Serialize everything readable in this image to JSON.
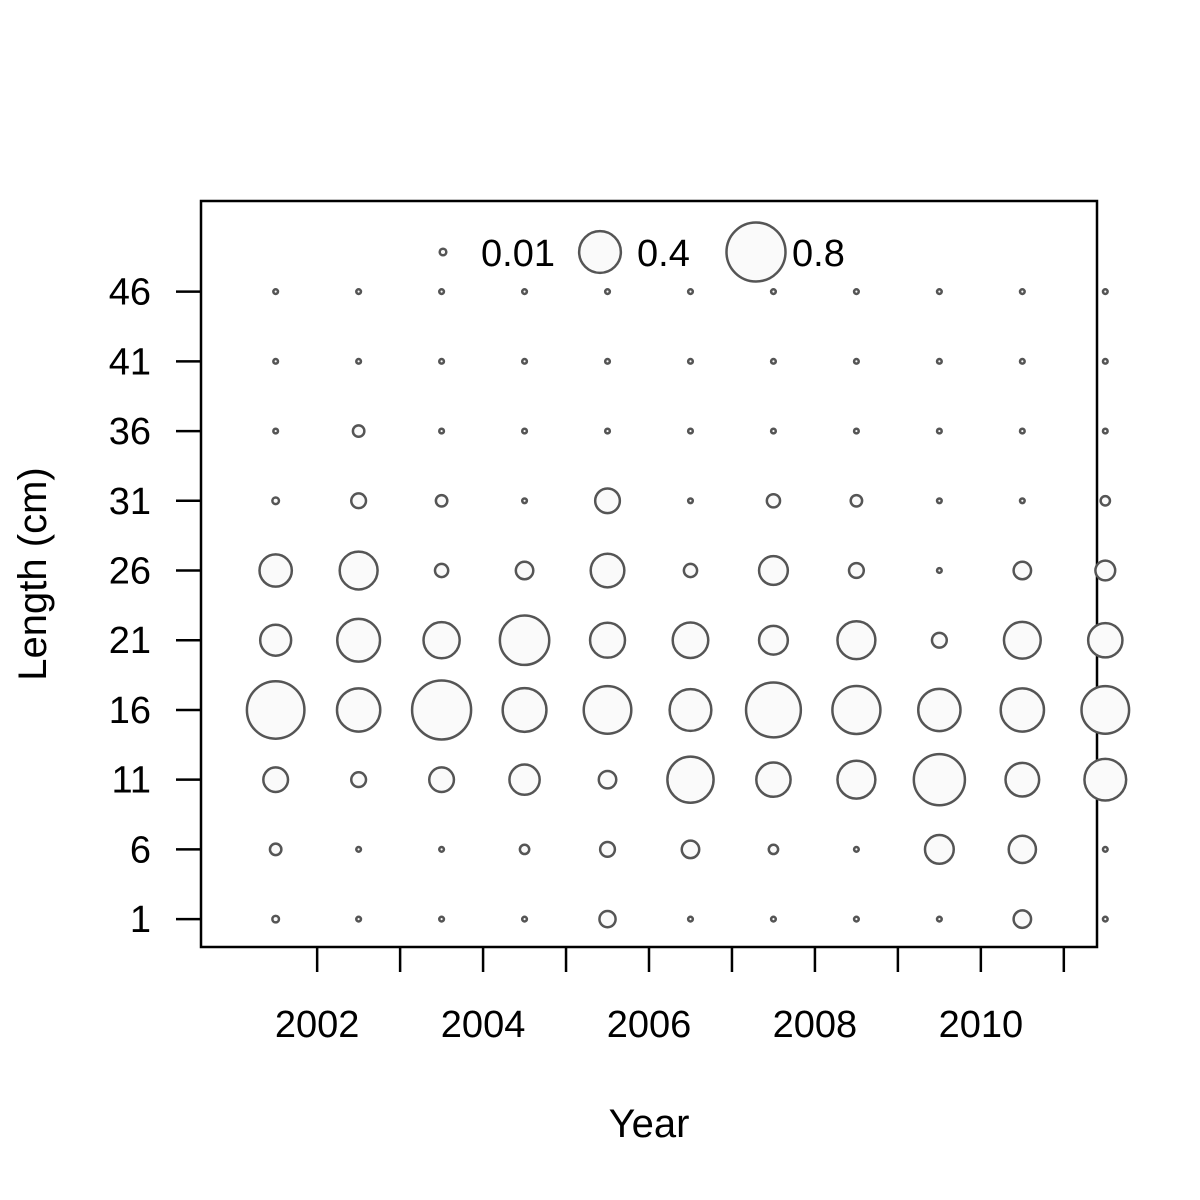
{
  "chart_data": {
    "type": "bubble",
    "xlabel": "Year",
    "ylabel": "Length (cm)",
    "x_tick_labels": [
      "2002",
      "2004",
      "2006",
      "2008",
      "2010"
    ],
    "x_ticks": [
      2002,
      2003,
      2004,
      2005,
      2006,
      2007,
      2008,
      2009,
      2010,
      2011
    ],
    "xlim": [
      2000.6,
      2011.4
    ],
    "y_ticks": [
      1,
      6,
      11,
      16,
      21,
      26,
      31,
      36,
      41,
      46
    ],
    "ylim": [
      -1,
      52.5
    ],
    "grid": false,
    "legend": {
      "placement": "top",
      "entries": [
        {
          "label": "0.01",
          "value": 0.01
        },
        {
          "label": "0.4",
          "value": 0.4
        },
        {
          "label": "0.8",
          "value": 0.8
        }
      ]
    },
    "x": [
      2001.5,
      2002.5,
      2003.5,
      2004.5,
      2005.5,
      2006.5,
      2007.5,
      2008.5,
      2009.5,
      2010.5,
      2011.5
    ],
    "lengths": [
      1,
      6,
      11,
      16,
      21,
      26,
      31,
      36,
      41,
      46
    ],
    "proportions": [
      [
        0.01,
        0.03,
        0.14,
        0.76,
        0.22,
        0.24,
        0.01,
        0.005,
        0.005,
        0.005
      ],
      [
        0.005,
        0.005,
        0.05,
        0.43,
        0.42,
        0.33,
        0.05,
        0.03,
        0.005,
        0.005
      ],
      [
        0.005,
        0.005,
        0.14,
        0.8,
        0.3,
        0.04,
        0.03,
        0.005,
        0.005,
        0.005
      ],
      [
        0.005,
        0.02,
        0.21,
        0.44,
        0.56,
        0.07,
        0.005,
        0.005,
        0.005,
        0.005
      ],
      [
        0.06,
        0.05,
        0.07,
        0.52,
        0.28,
        0.26,
        0.14,
        0.005,
        0.005,
        0.005
      ],
      [
        0.005,
        0.07,
        0.49,
        0.4,
        0.29,
        0.04,
        0.005,
        0.005,
        0.005,
        0.005
      ],
      [
        0.005,
        0.02,
        0.27,
        0.69,
        0.19,
        0.19,
        0.04,
        0.005,
        0.005,
        0.005
      ],
      [
        0.005,
        0.005,
        0.33,
        0.53,
        0.33,
        0.05,
        0.03,
        0.005,
        0.005,
        0.005
      ],
      [
        0.005,
        0.19,
        0.6,
        0.41,
        0.05,
        0.005,
        0.005,
        0.005,
        0.005,
        0.005
      ],
      [
        0.07,
        0.17,
        0.26,
        0.43,
        0.31,
        0.07,
        0.005,
        0.005,
        0.005,
        0.005
      ],
      [
        0.005,
        0.005,
        0.4,
        0.52,
        0.27,
        0.09,
        0.02,
        0.005,
        0.005,
        0.005
      ]
    ],
    "colors": {
      "bubble_stroke": "#555555",
      "bubble_fill": "#fafafa",
      "axis": "#000000"
    }
  }
}
